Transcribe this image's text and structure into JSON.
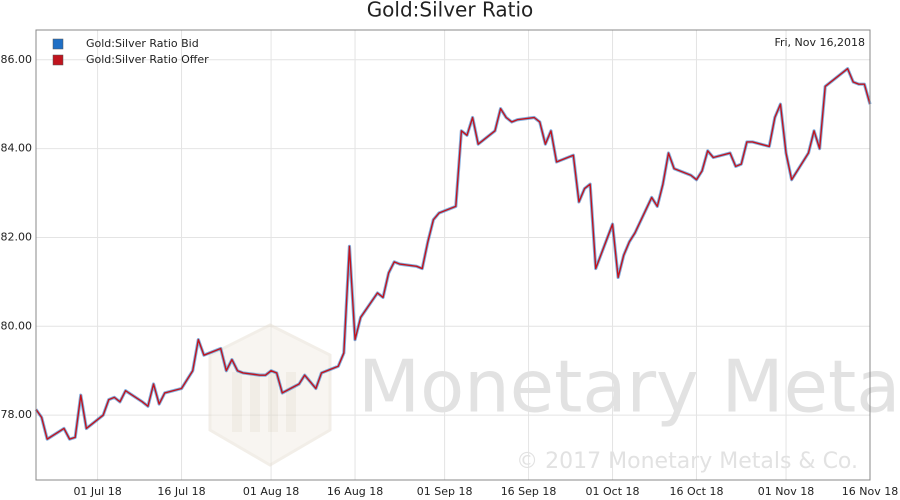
{
  "chart_data": {
    "type": "line",
    "title": "Gold:Silver Ratio",
    "annotations": [
      "Fri, Nov 16,2018"
    ],
    "watermark": [
      "Monetary Metals",
      "© 2017 Monetary Metals & Co."
    ],
    "x": [
      "2018-06-20",
      "2018-06-21",
      "2018-06-22",
      "2018-06-25",
      "2018-06-26",
      "2018-06-27",
      "2018-06-28",
      "2018-06-29",
      "2018-07-02",
      "2018-07-03",
      "2018-07-04",
      "2018-07-05",
      "2018-07-06",
      "2018-07-09",
      "2018-07-10",
      "2018-07-11",
      "2018-07-12",
      "2018-07-13",
      "2018-07-16",
      "2018-07-17",
      "2018-07-18",
      "2018-07-19",
      "2018-07-20",
      "2018-07-23",
      "2018-07-24",
      "2018-07-25",
      "2018-07-26",
      "2018-07-27",
      "2018-07-30",
      "2018-07-31",
      "2018-08-01",
      "2018-08-02",
      "2018-08-03",
      "2018-08-06",
      "2018-08-07",
      "2018-08-08",
      "2018-08-09",
      "2018-08-10",
      "2018-08-13",
      "2018-08-14",
      "2018-08-15",
      "2018-08-16",
      "2018-08-17",
      "2018-08-20",
      "2018-08-21",
      "2018-08-22",
      "2018-08-23",
      "2018-08-24",
      "2018-08-27",
      "2018-08-28",
      "2018-08-29",
      "2018-08-30",
      "2018-08-31",
      "2018-09-03",
      "2018-09-04",
      "2018-09-05",
      "2018-09-06",
      "2018-09-07",
      "2018-09-10",
      "2018-09-11",
      "2018-09-12",
      "2018-09-13",
      "2018-09-14",
      "2018-09-17",
      "2018-09-18",
      "2018-09-19",
      "2018-09-20",
      "2018-09-21",
      "2018-09-24",
      "2018-09-25",
      "2018-09-26",
      "2018-09-27",
      "2018-09-28",
      "2018-10-01",
      "2018-10-02",
      "2018-10-03",
      "2018-10-04",
      "2018-10-05",
      "2018-10-08",
      "2018-10-09",
      "2018-10-10",
      "2018-10-11",
      "2018-10-12",
      "2018-10-15",
      "2018-10-16",
      "2018-10-17",
      "2018-10-18",
      "2018-10-19",
      "2018-10-22",
      "2018-10-23",
      "2018-10-24",
      "2018-10-25",
      "2018-10-26",
      "2018-10-29",
      "2018-10-30",
      "2018-10-31",
      "2018-11-01",
      "2018-11-02",
      "2018-11-05",
      "2018-11-06",
      "2018-11-07",
      "2018-11-08",
      "2018-11-09",
      "2018-11-12",
      "2018-11-13",
      "2018-11-14",
      "2018-11-15",
      "2018-11-16"
    ],
    "series": [
      {
        "name": "Gold:Silver Ratio Bid",
        "color": "#1f6fc5",
        "values": [
          78.13,
          77.95,
          77.46,
          77.7,
          77.46,
          77.5,
          78.45,
          77.7,
          78.0,
          78.35,
          78.4,
          78.3,
          78.55,
          78.3,
          78.2,
          78.7,
          78.25,
          78.5,
          78.6,
          78.8,
          79.0,
          79.7,
          79.35,
          79.5,
          79.0,
          79.25,
          79.0,
          78.95,
          78.9,
          78.9,
          79.0,
          78.95,
          78.5,
          78.7,
          78.9,
          78.75,
          78.6,
          78.95,
          79.1,
          79.4,
          81.8,
          79.7,
          80.2,
          80.75,
          80.65,
          81.2,
          81.45,
          81.4,
          81.35,
          81.3,
          81.9,
          82.4,
          82.55,
          82.7,
          84.4,
          84.3,
          84.7,
          84.1,
          84.4,
          84.9,
          84.7,
          84.6,
          84.65,
          84.7,
          84.6,
          84.1,
          84.4,
          83.7,
          83.85,
          82.8,
          83.1,
          83.2,
          81.3,
          82.3,
          81.1,
          81.6,
          81.9,
          82.1,
          82.9,
          82.7,
          83.2,
          83.9,
          83.55,
          83.4,
          83.3,
          83.5,
          83.95,
          83.8,
          83.9,
          83.6,
          83.65,
          84.15,
          84.15,
          84.05,
          84.7,
          85.0,
          83.9,
          83.3,
          83.9,
          84.4,
          84.0,
          85.4,
          85.5,
          85.8,
          85.5,
          85.45,
          85.45,
          85.0
        ]
      },
      {
        "name": "Gold:Silver Ratio Offer",
        "color": "#c0141e",
        "values": [
          78.13,
          77.95,
          77.46,
          77.7,
          77.46,
          77.5,
          78.45,
          77.7,
          78.0,
          78.35,
          78.4,
          78.3,
          78.55,
          78.3,
          78.2,
          78.7,
          78.25,
          78.5,
          78.6,
          78.8,
          79.0,
          79.7,
          79.35,
          79.5,
          79.0,
          79.25,
          79.0,
          78.95,
          78.9,
          78.9,
          79.0,
          78.95,
          78.5,
          78.7,
          78.9,
          78.75,
          78.6,
          78.95,
          79.1,
          79.4,
          81.8,
          79.7,
          80.2,
          80.75,
          80.65,
          81.2,
          81.45,
          81.4,
          81.35,
          81.3,
          81.9,
          82.4,
          82.55,
          82.7,
          84.4,
          84.3,
          84.7,
          84.1,
          84.4,
          84.9,
          84.7,
          84.6,
          84.65,
          84.7,
          84.6,
          84.1,
          84.4,
          83.7,
          83.85,
          82.8,
          83.1,
          83.2,
          81.3,
          82.3,
          81.1,
          81.6,
          81.9,
          82.1,
          82.9,
          82.7,
          83.2,
          83.9,
          83.55,
          83.4,
          83.3,
          83.5,
          83.95,
          83.8,
          83.9,
          83.6,
          83.65,
          84.15,
          84.15,
          84.05,
          84.7,
          85.0,
          83.9,
          83.3,
          83.9,
          84.4,
          84.0,
          85.4,
          85.5,
          85.8,
          85.5,
          85.45,
          85.45,
          85.0
        ]
      }
    ],
    "xlim": [
      "2018-06-20",
      "2018-11-16"
    ],
    "xticks": [
      {
        "value": "2018-07-01",
        "label": "01 Jul 18"
      },
      {
        "value": "2018-07-16",
        "label": "16 Jul 18"
      },
      {
        "value": "2018-08-01",
        "label": "01 Aug 18"
      },
      {
        "value": "2018-08-16",
        "label": "16 Aug 18"
      },
      {
        "value": "2018-09-01",
        "label": "01 Sep 18"
      },
      {
        "value": "2018-09-16",
        "label": "16 Sep 18"
      },
      {
        "value": "2018-10-01",
        "label": "01 Oct 18"
      },
      {
        "value": "2018-10-16",
        "label": "16 Oct 18"
      },
      {
        "value": "2018-11-01",
        "label": "01 Nov 18"
      },
      {
        "value": "2018-11-16",
        "label": "16 Nov 18"
      }
    ],
    "ylim": [
      76.54,
      86.67
    ],
    "yticks": [
      {
        "value": 78,
        "label": "78.00"
      },
      {
        "value": 80,
        "label": "80.00"
      },
      {
        "value": 82,
        "label": "82.00"
      },
      {
        "value": 84,
        "label": "84.00"
      },
      {
        "value": 86,
        "label": "86.00"
      }
    ],
    "grid": true,
    "legend": "top-left"
  }
}
